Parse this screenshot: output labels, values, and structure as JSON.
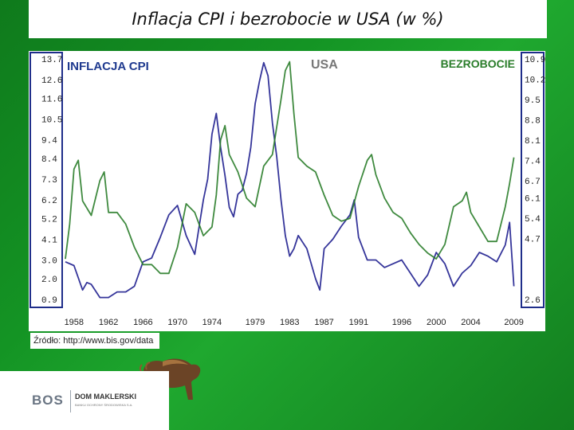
{
  "title": "Inflacja CPI i bezrobocie w USA (w %)",
  "source": "Źródło: http://www.bis.gov/data",
  "footer": {
    "logo_main": "BOS",
    "logo_dm": "DOM MAKLERSKI",
    "logo_sub": "BANKU OCHRONY ŚRODOWISKA S.A."
  },
  "colors": {
    "inflation": "#1f1f8f",
    "unemployment": "#2a7d2a",
    "chart_label": "#1f3a8f",
    "unemployment_label": "#2a7d2a",
    "country_label": "#777777",
    "axis_frame": "#1f2e8a"
  },
  "chart_data": {
    "type": "line",
    "title": "USA",
    "left_axis_title": "INFLACJA CPI",
    "right_axis_title": "BEZROBOCIE",
    "x_ticks": [
      "1958",
      "1962",
      "1966",
      "1970",
      "1974",
      "1979",
      "1983",
      "1987",
      "1991",
      "1996",
      "2000",
      "2004",
      "2009"
    ],
    "left_ticks": [
      "13.7",
      "12.6",
      "11.6",
      "10.5",
      "9.4",
      "8.4",
      "7.3",
      "6.2",
      "5.2",
      "4.1",
      "3.0",
      "2.0",
      "0.9"
    ],
    "right_ticks": [
      "10.9",
      "10.2",
      "9.5",
      "8.8",
      "8.1",
      "7.4",
      "6.7",
      "6.1",
      "5.4",
      "4.7",
      "2.6"
    ],
    "xlim": [
      1957,
      2009.5
    ],
    "left_ylim": [
      0.9,
      13.7
    ],
    "right_ylim": [
      2.6,
      10.9
    ],
    "series": [
      {
        "name": "INFLACJA CPI",
        "axis": "left",
        "x": [
          1957.0,
          1958.0,
          1959.0,
          1959.5,
          1960.0,
          1961.0,
          1962.0,
          1963.0,
          1964.0,
          1965.0,
          1966.0,
          1967.0,
          1968.0,
          1969.0,
          1970.0,
          1971.0,
          1971.5,
          1972.0,
          1973.0,
          1973.5,
          1974.0,
          1974.5,
          1975.0,
          1975.5,
          1976.0,
          1976.5,
          1977.0,
          1977.5,
          1978.0,
          1978.5,
          1979.0,
          1979.5,
          1980.0,
          1980.5,
          1981.0,
          1981.5,
          1982.0,
          1982.5,
          1983.0,
          1983.5,
          1984.0,
          1985.0,
          1986.0,
          1986.5,
          1987.0,
          1988.0,
          1989.0,
          1990.0,
          1990.5,
          1991.0,
          1992.0,
          1993.0,
          1994.0,
          1995.0,
          1996.0,
          1997.0,
          1998.0,
          1999.0,
          2000.0,
          2001.0,
          2002.0,
          2003.0,
          2004.0,
          2005.0,
          2006.0,
          2007.0,
          2008.0,
          2008.5,
          2009.0
        ],
        "values": [
          2.9,
          2.7,
          1.4,
          1.8,
          1.7,
          1.0,
          1.0,
          1.3,
          1.3,
          1.6,
          2.9,
          3.1,
          4.2,
          5.4,
          5.9,
          4.3,
          3.8,
          3.3,
          6.2,
          7.3,
          9.7,
          10.8,
          9.0,
          7.5,
          5.8,
          5.3,
          6.5,
          6.7,
          7.6,
          9.0,
          11.3,
          12.5,
          13.5,
          12.8,
          10.3,
          8.5,
          6.2,
          4.3,
          3.2,
          3.6,
          4.3,
          3.6,
          2.0,
          1.4,
          3.6,
          4.1,
          4.8,
          5.4,
          6.2,
          4.2,
          3.0,
          3.0,
          2.6,
          2.8,
          3.0,
          2.3,
          1.6,
          2.2,
          3.4,
          2.8,
          1.6,
          2.3,
          2.7,
          3.4,
          3.2,
          2.9,
          3.8,
          5.0,
          1.6
        ]
      },
      {
        "name": "BEZROBOCIE",
        "axis": "right",
        "x": [
          1957.0,
          1957.5,
          1958.0,
          1958.5,
          1959.0,
          1960.0,
          1961.0,
          1961.5,
          1962.0,
          1963.0,
          1964.0,
          1965.0,
          1966.0,
          1967.0,
          1968.0,
          1969.0,
          1970.0,
          1971.0,
          1972.0,
          1973.0,
          1974.0,
          1974.5,
          1975.0,
          1975.5,
          1976.0,
          1977.0,
          1978.0,
          1979.0,
          1980.0,
          1981.0,
          1982.0,
          1982.5,
          1983.0,
          1983.5,
          1984.0,
          1985.0,
          1986.0,
          1987.0,
          1988.0,
          1989.0,
          1990.0,
          1991.0,
          1992.0,
          1992.5,
          1993.0,
          1994.0,
          1995.0,
          1996.0,
          1997.0,
          1998.0,
          1999.0,
          2000.0,
          2001.0,
          2002.0,
          2003.0,
          2003.5,
          2004.0,
          2005.0,
          2006.0,
          2007.0,
          2008.0,
          2008.5,
          2009.0
        ],
        "values": [
          4.0,
          5.2,
          7.1,
          7.4,
          6.0,
          5.5,
          6.7,
          7.0,
          5.6,
          5.6,
          5.2,
          4.4,
          3.8,
          3.8,
          3.5,
          3.5,
          4.4,
          5.9,
          5.6,
          4.8,
          5.1,
          6.2,
          8.1,
          8.6,
          7.6,
          7.0,
          6.1,
          5.8,
          7.2,
          7.6,
          9.5,
          10.5,
          10.8,
          9.0,
          7.5,
          7.2,
          7.0,
          6.2,
          5.5,
          5.3,
          5.4,
          6.5,
          7.4,
          7.6,
          6.9,
          6.1,
          5.6,
          5.4,
          4.9,
          4.5,
          4.2,
          4.0,
          4.5,
          5.8,
          6.0,
          6.3,
          5.6,
          5.1,
          4.6,
          4.6,
          5.8,
          6.6,
          7.5
        ]
      }
    ]
  }
}
